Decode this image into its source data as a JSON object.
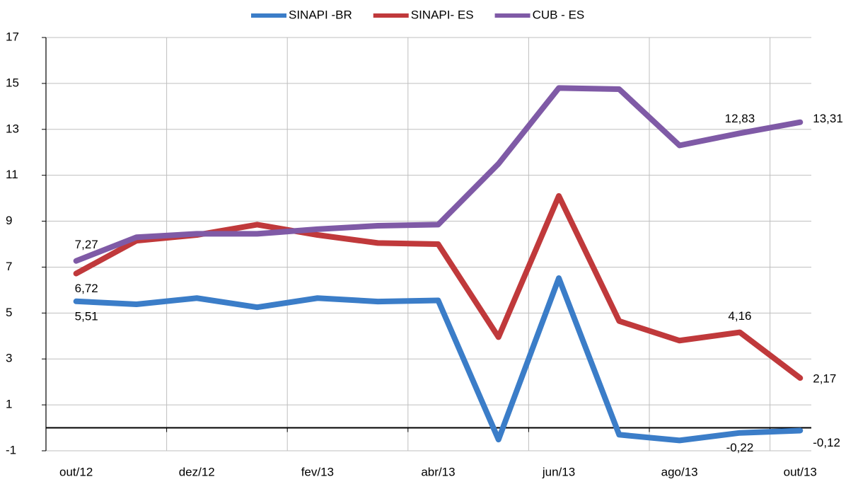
{
  "chart_data": {
    "type": "line",
    "categories": [
      "out/12",
      null,
      "dez/12",
      null,
      "fev/13",
      null,
      "abr/13",
      null,
      "jun/13",
      null,
      "ago/13",
      null,
      "out/13"
    ],
    "series": [
      {
        "name": "SINAPI -BR",
        "color": "#3b7dc8",
        "values": [
          5.51,
          5.38,
          5.65,
          5.25,
          5.65,
          5.5,
          5.55,
          -0.51,
          6.52,
          -0.3,
          -0.55,
          -0.22,
          -0.12
        ],
        "value_labels": [
          "5,51",
          null,
          null,
          null,
          null,
          null,
          null,
          null,
          null,
          null,
          null,
          "-0,22",
          "-0,12"
        ]
      },
      {
        "name": "SINAPI- ES",
        "color": "#c0393b",
        "values": [
          6.72,
          8.15,
          8.4,
          8.85,
          8.4,
          8.05,
          8.0,
          3.95,
          10.1,
          4.65,
          3.8,
          4.16,
          2.17
        ],
        "value_labels": [
          "6,72",
          null,
          null,
          null,
          null,
          null,
          null,
          null,
          null,
          null,
          null,
          "4,16",
          "2,17"
        ]
      },
      {
        "name": "CUB - ES",
        "color": "#7f5aa6",
        "values": [
          7.27,
          8.3,
          8.45,
          8.45,
          8.65,
          8.8,
          8.85,
          11.5,
          14.8,
          14.75,
          12.3,
          12.83,
          13.31
        ],
        "value_labels": [
          "7,27",
          null,
          null,
          null,
          null,
          null,
          null,
          null,
          null,
          null,
          null,
          "12,83",
          "13,31"
        ]
      }
    ],
    "ylim": [
      -1,
      17
    ],
    "yticks": [
      -1,
      1,
      3,
      5,
      7,
      9,
      11,
      13,
      15,
      17
    ],
    "grid": true,
    "legend": "top"
  }
}
